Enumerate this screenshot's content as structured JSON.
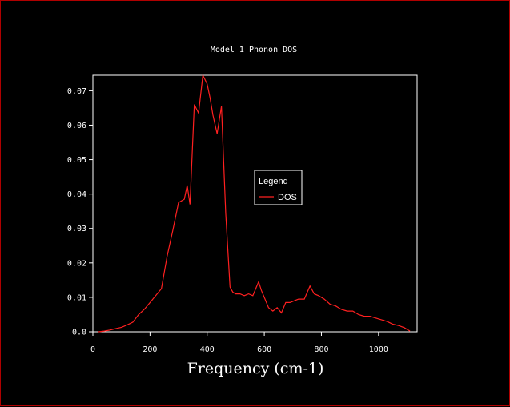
{
  "colors": {
    "background": "#000000",
    "frame": "#b00000",
    "axes": "#ffffff",
    "series": "#ff2020"
  },
  "chart_data": {
    "type": "line",
    "title": "Model_1 Phonon DOS",
    "xlabel": "Frequency (cm-1)",
    "ylabel": "",
    "xlim": [
      0,
      1135
    ],
    "ylim": [
      0,
      0.0745
    ],
    "xticks": [
      0,
      200,
      400,
      600,
      800,
      1000
    ],
    "xtick_labels": [
      "0",
      "200",
      "400",
      "600",
      "800",
      "1000"
    ],
    "yticks": [
      0.0,
      0.01,
      0.02,
      0.03,
      0.04,
      0.05,
      0.06,
      0.07
    ],
    "ytick_labels": [
      "0.0",
      "0.01",
      "0.02",
      "0.03",
      "0.04",
      "0.05",
      "0.06",
      "0.07"
    ],
    "grid": false,
    "legend": {
      "title": "Legend",
      "placement": "center-right",
      "entries": [
        "DOS"
      ]
    },
    "series": [
      {
        "name": "DOS",
        "x": [
          20,
          40,
          60,
          80,
          100,
          120,
          140,
          160,
          180,
          200,
          220,
          240,
          260,
          280,
          300,
          320,
          330,
          340,
          355,
          370,
          385,
          400,
          410,
          420,
          435,
          450,
          465,
          480,
          490,
          500,
          515,
          530,
          545,
          560,
          580,
          590,
          600,
          615,
          630,
          645,
          660,
          675,
          690,
          705,
          720,
          740,
          760,
          775,
          790,
          810,
          830,
          850,
          870,
          890,
          910,
          930,
          950,
          970,
          990,
          1010,
          1030,
          1050,
          1070,
          1090,
          1110
        ],
        "y": [
          0.0,
          0.0002,
          0.0005,
          0.0009,
          0.0013,
          0.002,
          0.0028,
          0.005,
          0.0065,
          0.0085,
          0.0105,
          0.0125,
          0.022,
          0.0295,
          0.0375,
          0.0385,
          0.0425,
          0.037,
          0.066,
          0.0635,
          0.0745,
          0.072,
          0.068,
          0.063,
          0.0575,
          0.0655,
          0.0345,
          0.013,
          0.0115,
          0.011,
          0.011,
          0.0105,
          0.011,
          0.0105,
          0.0145,
          0.012,
          0.01,
          0.007,
          0.006,
          0.007,
          0.0055,
          0.0085,
          0.0085,
          0.009,
          0.0095,
          0.0095,
          0.0133,
          0.011,
          0.0105,
          0.0095,
          0.008,
          0.0075,
          0.0065,
          0.006,
          0.006,
          0.005,
          0.0045,
          0.0045,
          0.004,
          0.0035,
          0.003,
          0.0022,
          0.0018,
          0.0012,
          0.0002
        ]
      }
    ]
  }
}
